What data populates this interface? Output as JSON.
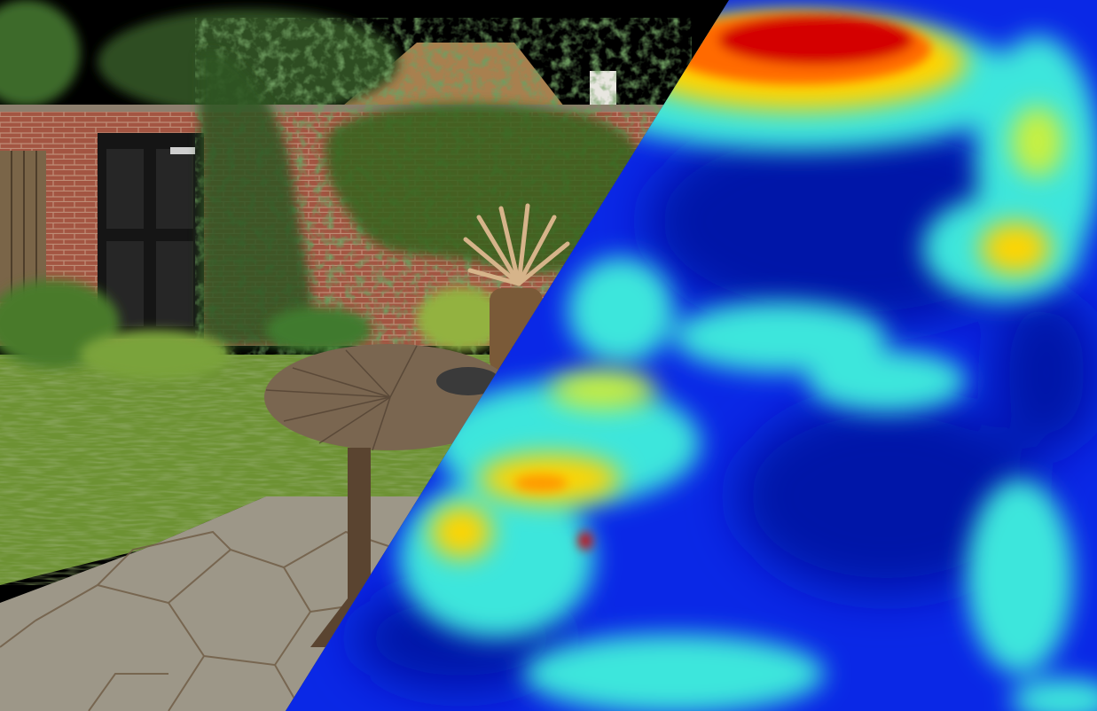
{
  "image": {
    "left_panel": "photo",
    "right_panel": "heatmap",
    "split": "diagonal",
    "colormap": "jet",
    "colors": {
      "hot_spot": "#d40000",
      "warm": "#ffd400",
      "mid": "#3ce6dc",
      "cool": "#0a28e6",
      "sky_mask": "#000000",
      "brick": "#a35542",
      "foliage": "#3c6a25",
      "lawn": "#6d9233",
      "door": "#151515",
      "table_wood": "#7a6650",
      "paving": "#9d9788"
    },
    "icons": [
      "garden-wall",
      "door",
      "ivy",
      "round-table",
      "palm-plant",
      "paving-stones",
      "lawn"
    ]
  }
}
